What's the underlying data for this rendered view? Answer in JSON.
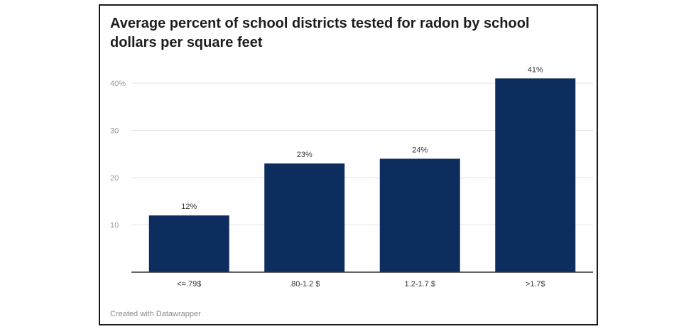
{
  "chart_data": {
    "type": "bar",
    "title": "Average percent of school districts tested for radon by school dollars per square feet",
    "categories": [
      "<=.79$",
      ".80-1.2 $",
      "1.2-1.7 $",
      ">1.7$"
    ],
    "values": [
      12,
      23,
      24,
      41
    ],
    "value_labels": [
      "12%",
      "23%",
      "24%",
      "41%"
    ],
    "y_ticks": [
      10,
      20,
      30,
      40
    ],
    "y_tick_labels": [
      "10",
      "20",
      "30",
      "40%"
    ],
    "ylim": [
      0,
      45
    ],
    "grid": true,
    "bar_color": "#0d2d5e"
  },
  "footer": {
    "credit": "Created with Datawrapper"
  }
}
